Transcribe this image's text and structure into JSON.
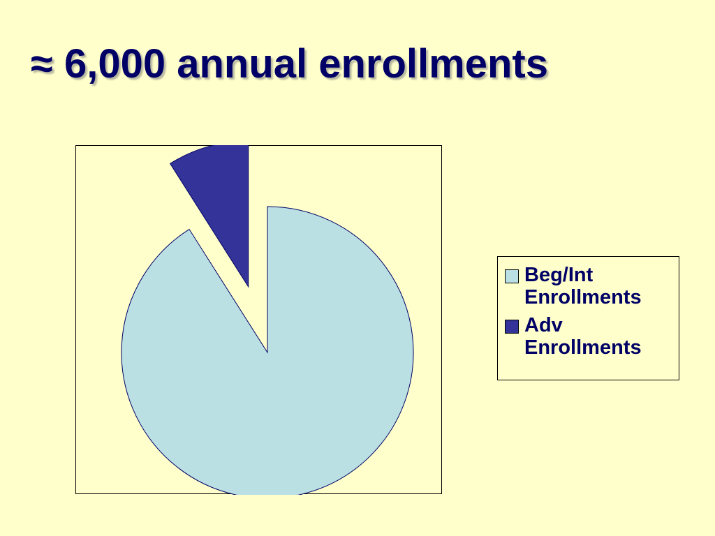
{
  "chart_data": {
    "type": "pie",
    "title": "≈ 6,000 annual enrollments",
    "categories": [
      "Beg/Int Enrollments",
      "Adv Enrollments"
    ],
    "values": [
      91,
      9
    ],
    "colors": [
      "#bbe0e3",
      "#333399"
    ],
    "exploded": [
      false,
      true
    ],
    "legend": "right"
  }
}
